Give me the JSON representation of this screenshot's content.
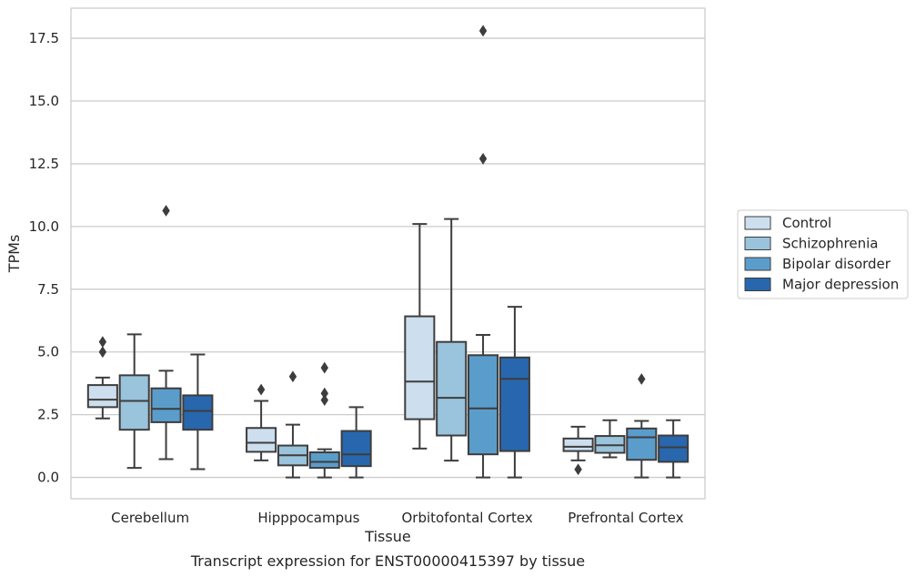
{
  "chart_data": {
    "type": "boxplot",
    "title": "Transcript expression for ENST00000415397 by tissue",
    "xlabel": "Tissue",
    "ylabel": "TPMs",
    "ylim": [
      -0.85,
      18.7
    ],
    "yticks": [
      0.0,
      2.5,
      5.0,
      7.5,
      10.0,
      12.5,
      15.0,
      17.5
    ],
    "ytick_labels": [
      "0.0",
      "2.5",
      "5.0",
      "7.5",
      "10.0",
      "12.5",
      "15.0",
      "17.5"
    ],
    "grid": "horizontal",
    "legend_position": "right",
    "categories": [
      "Cerebellum",
      "Hipppocampus",
      "Orbitofontal Cortex",
      "Prefrontal Cortex"
    ],
    "series": [
      {
        "name": "Control",
        "color": "#cddfee",
        "boxes": [
          {
            "whislo": 2.35,
            "q1": 2.8,
            "med": 3.1,
            "q3": 3.68,
            "whishi": 3.98,
            "fliers": [
              5.0,
              5.4
            ]
          },
          {
            "whislo": 0.68,
            "q1": 1.02,
            "med": 1.38,
            "q3": 1.97,
            "whishi": 3.05,
            "fliers": [
              3.5
            ]
          },
          {
            "whislo": 1.15,
            "q1": 2.32,
            "med": 3.82,
            "q3": 6.42,
            "whishi": 10.1,
            "fliers": []
          },
          {
            "whislo": 0.68,
            "q1": 1.05,
            "med": 1.22,
            "q3": 1.55,
            "whishi": 2.02,
            "fliers": [
              0.32
            ]
          }
        ]
      },
      {
        "name": "Schizophrenia",
        "color": "#9ac3dc",
        "boxes": [
          {
            "whislo": 0.38,
            "q1": 1.9,
            "med": 3.05,
            "q3": 4.07,
            "whishi": 5.7,
            "fliers": []
          },
          {
            "whislo": 0.0,
            "q1": 0.48,
            "med": 0.88,
            "q3": 1.27,
            "whishi": 2.1,
            "fliers": [
              4.02
            ]
          },
          {
            "whislo": 0.67,
            "q1": 1.67,
            "med": 3.17,
            "q3": 5.4,
            "whishi": 10.3,
            "fliers": []
          },
          {
            "whislo": 0.8,
            "q1": 0.98,
            "med": 1.28,
            "q3": 1.65,
            "whishi": 2.28,
            "fliers": []
          }
        ]
      },
      {
        "name": "Bipolar disorder",
        "color": "#5a9dcb",
        "boxes": [
          {
            "whislo": 0.73,
            "q1": 2.2,
            "med": 2.73,
            "q3": 3.55,
            "whishi": 4.25,
            "fliers": [
              10.63
            ]
          },
          {
            "whislo": 0.0,
            "q1": 0.38,
            "med": 0.62,
            "q3": 1.0,
            "whishi": 1.12,
            "fliers": [
              3.08,
              3.35,
              4.37
            ]
          },
          {
            "whislo": 0.0,
            "q1": 0.92,
            "med": 2.75,
            "q3": 4.87,
            "whishi": 5.68,
            "fliers": [
              17.8,
              12.7
            ]
          },
          {
            "whislo": 0.0,
            "q1": 0.7,
            "med": 1.6,
            "q3": 1.95,
            "whishi": 2.25,
            "fliers": [
              3.92
            ]
          }
        ]
      },
      {
        "name": "Major depression",
        "color": "#2867ad",
        "boxes": [
          {
            "whislo": 0.33,
            "q1": 1.9,
            "med": 2.65,
            "q3": 3.27,
            "whishi": 4.9,
            "fliers": []
          },
          {
            "whislo": 0.0,
            "q1": 0.45,
            "med": 0.92,
            "q3": 1.85,
            "whishi": 2.8,
            "fliers": []
          },
          {
            "whislo": 0.0,
            "q1": 1.05,
            "med": 3.93,
            "q3": 4.78,
            "whishi": 6.8,
            "fliers": []
          },
          {
            "whislo": 0.0,
            "q1": 0.62,
            "med": 1.2,
            "q3": 1.67,
            "whishi": 2.28,
            "fliers": []
          }
        ]
      }
    ],
    "colors": {
      "grid": "#cccccc",
      "frame": "#cccccc",
      "edge": "#3d3d3d"
    }
  }
}
